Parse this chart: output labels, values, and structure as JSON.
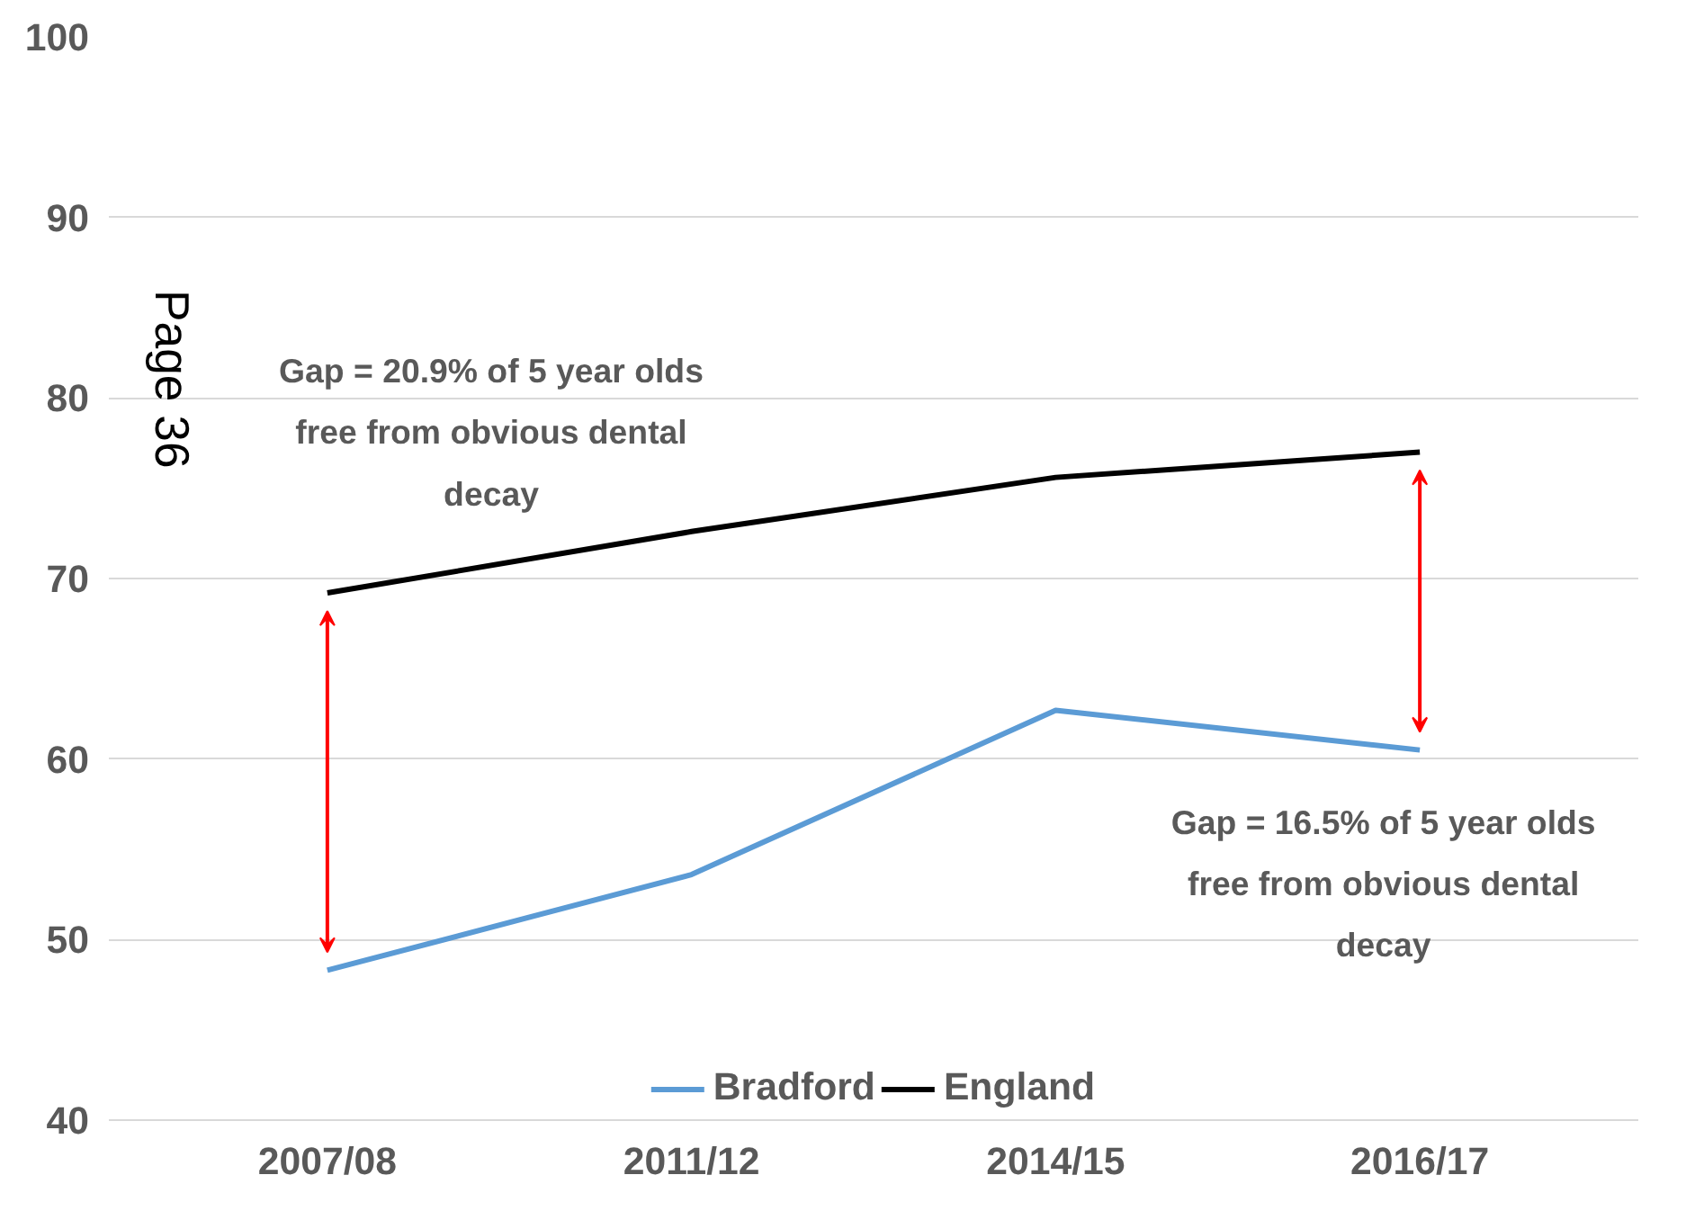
{
  "chart_data": {
    "type": "line",
    "categories": [
      "2007/08",
      "2011/12",
      "2014/15",
      "2016/17"
    ],
    "series": [
      {
        "name": "Bradford",
        "color": "#5b9bd5",
        "values": [
          48.3,
          53.6,
          62.7,
          60.5
        ]
      },
      {
        "name": "England",
        "color": "#000000",
        "values": [
          69.2,
          72.6,
          75.6,
          77.0
        ]
      }
    ],
    "ylim": [
      40,
      100
    ],
    "yticks": [
      40,
      50,
      60,
      70,
      80,
      90,
      100
    ],
    "grid": "y",
    "legend": "bottom",
    "line_style": "solid",
    "annotations": [
      "Gap = 20.9% of 5 year olds free from obvious dental decay",
      "Gap = 16.5% of 5 year olds free from obvious dental decay",
      "Page 36"
    ]
  }
}
